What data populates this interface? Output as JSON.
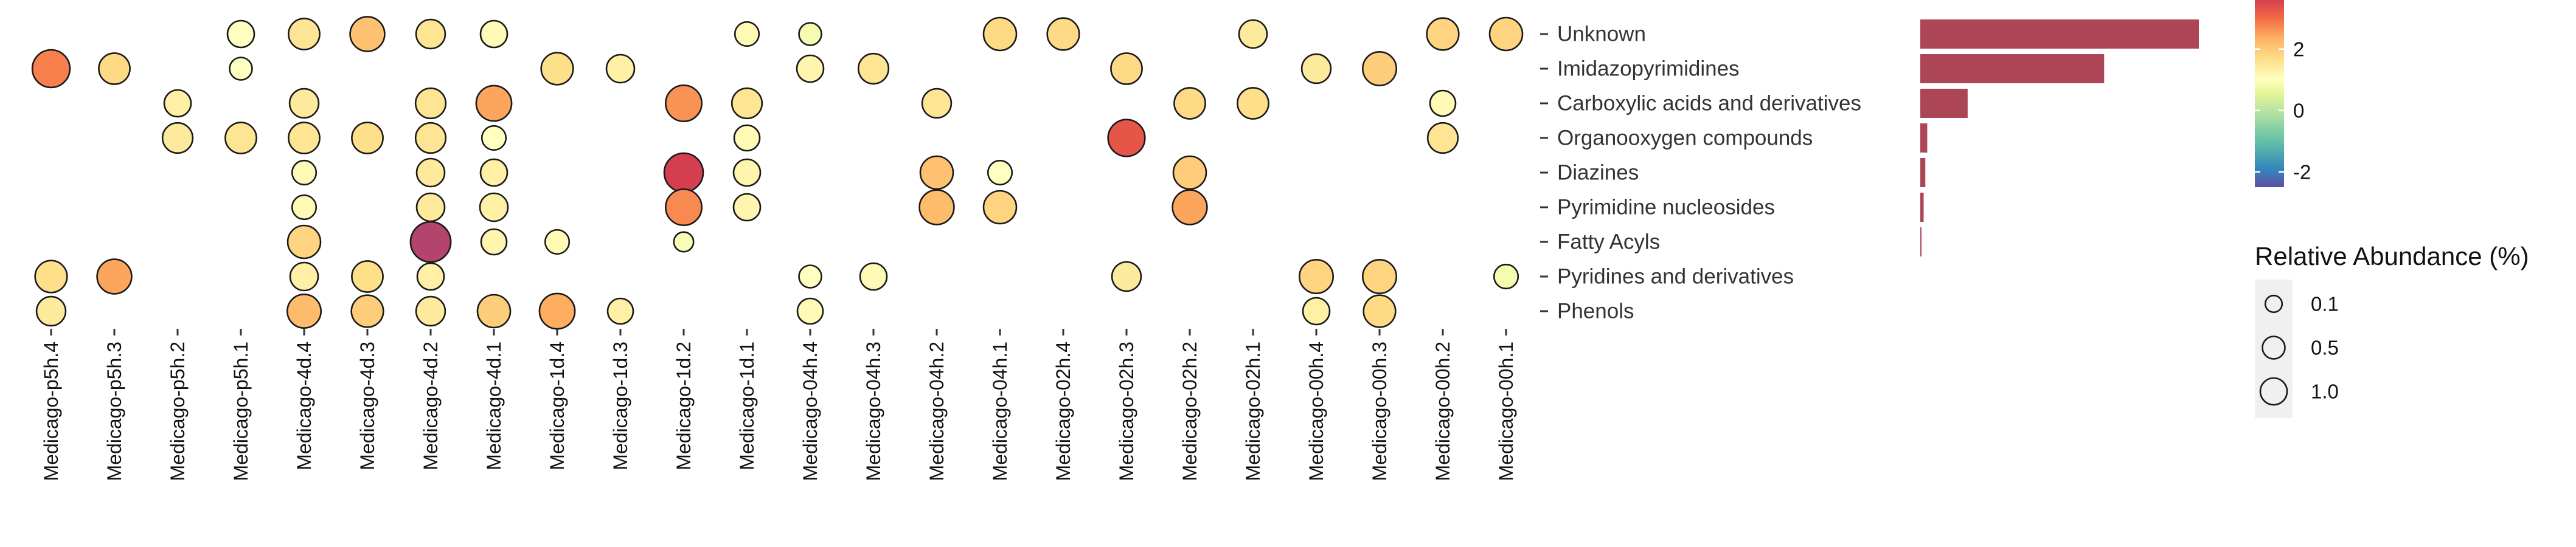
{
  "chart_data": {
    "type": "bubble-heatmap",
    "samples": [
      "Medicago-p5h.4",
      "Medicago-p5h.3",
      "Medicago-p5h.2",
      "Medicago-p5h.1",
      "Medicago-4d.4",
      "Medicago-4d.3",
      "Medicago-4d.2",
      "Medicago-4d.1",
      "Medicago-1d.4",
      "Medicago-1d.3",
      "Medicago-1d.2",
      "Medicago-1d.1",
      "Medicago-04h.4",
      "Medicago-04h.3",
      "Medicago-04h.2",
      "Medicago-04h.1",
      "Medicago-02h.4",
      "Medicago-02h.3",
      "Medicago-02h.2",
      "Medicago-02h.1",
      "Medicago-00h.4",
      "Medicago-00h.3",
      "Medicago-00h.2",
      "Medicago-00h.1"
    ],
    "classes": [
      "Unknown",
      "Imidazopyrimidines",
      "Carboxylic acids and derivatives",
      "Organooxygen compounds",
      "Diazines",
      "Pyrimidine nucleosides",
      "Fatty Acyls",
      "Pyridines and derivatives",
      "Phenols"
    ],
    "points": [
      {
        "sample": "Medicago-p5h.1",
        "class": "Unknown",
        "abundance": 0.3,
        "z": 0.5
      },
      {
        "sample": "Medicago-4d.4",
        "class": "Unknown",
        "abundance": 0.5,
        "z": 1.0
      },
      {
        "sample": "Medicago-4d.3",
        "class": "Unknown",
        "abundance": 0.7,
        "z": 1.6
      },
      {
        "sample": "Medicago-4d.2",
        "class": "Unknown",
        "abundance": 0.4,
        "z": 1.0
      },
      {
        "sample": "Medicago-4d.1",
        "class": "Unknown",
        "abundance": 0.3,
        "z": 0.6
      },
      {
        "sample": "Medicago-1d.1",
        "class": "Unknown",
        "abundance": 0.2,
        "z": 0.6
      },
      {
        "sample": "Medicago-04h.4",
        "class": "Unknown",
        "abundance": 0.15,
        "z": 0.3
      },
      {
        "sample": "Medicago-04h.1",
        "class": "Unknown",
        "abundance": 0.6,
        "z": 1.2
      },
      {
        "sample": "Medicago-02h.4",
        "class": "Unknown",
        "abundance": 0.55,
        "z": 1.2
      },
      {
        "sample": "Medicago-02h.1",
        "class": "Unknown",
        "abundance": 0.35,
        "z": 0.9
      },
      {
        "sample": "Medicago-00h.2",
        "class": "Unknown",
        "abundance": 0.55,
        "z": 1.3
      },
      {
        "sample": "Medicago-00h.1",
        "class": "Unknown",
        "abundance": 0.6,
        "z": 1.3
      },
      {
        "sample": "Medicago-p5h.4",
        "class": "Imidazopyrimidines",
        "abundance": 0.9,
        "z": 2.4
      },
      {
        "sample": "Medicago-p5h.3",
        "class": "Imidazopyrimidines",
        "abundance": 0.5,
        "z": 1.2
      },
      {
        "sample": "Medicago-p5h.1",
        "class": "Imidazopyrimidines",
        "abundance": 0.15,
        "z": 0.5
      },
      {
        "sample": "Medicago-1d.4",
        "class": "Imidazopyrimidines",
        "abundance": 0.55,
        "z": 1.1
      },
      {
        "sample": "Medicago-1d.3",
        "class": "Imidazopyrimidines",
        "abundance": 0.35,
        "z": 0.8
      },
      {
        "sample": "Medicago-04h.4",
        "class": "Imidazopyrimidines",
        "abundance": 0.3,
        "z": 0.7
      },
      {
        "sample": "Medicago-04h.3",
        "class": "Imidazopyrimidines",
        "abundance": 0.45,
        "z": 1.0
      },
      {
        "sample": "Medicago-02h.3",
        "class": "Imidazopyrimidines",
        "abundance": 0.5,
        "z": 1.2
      },
      {
        "sample": "Medicago-00h.4",
        "class": "Imidazopyrimidines",
        "abundance": 0.4,
        "z": 0.9
      },
      {
        "sample": "Medicago-00h.3",
        "class": "Imidazopyrimidines",
        "abundance": 0.65,
        "z": 1.4
      },
      {
        "sample": "Medicago-p5h.2",
        "class": "Carboxylic acids and derivatives",
        "abundance": 0.3,
        "z": 0.8
      },
      {
        "sample": "Medicago-4d.4",
        "class": "Carboxylic acids and derivatives",
        "abundance": 0.4,
        "z": 0.9
      },
      {
        "sample": "Medicago-4d.2",
        "class": "Carboxylic acids and derivatives",
        "abundance": 0.45,
        "z": 1.0
      },
      {
        "sample": "Medicago-4d.1",
        "class": "Carboxylic acids and derivatives",
        "abundance": 0.75,
        "z": 2.0
      },
      {
        "sample": "Medicago-1d.2",
        "class": "Carboxylic acids and derivatives",
        "abundance": 0.8,
        "z": 2.2
      },
      {
        "sample": "Medicago-1d.1",
        "class": "Carboxylic acids and derivatives",
        "abundance": 0.45,
        "z": 1.0
      },
      {
        "sample": "Medicago-04h.2",
        "class": "Carboxylic acids and derivatives",
        "abundance": 0.4,
        "z": 1.0
      },
      {
        "sample": "Medicago-02h.2",
        "class": "Carboxylic acids and derivatives",
        "abundance": 0.5,
        "z": 1.2
      },
      {
        "sample": "Medicago-02h.1",
        "class": "Carboxylic acids and derivatives",
        "abundance": 0.5,
        "z": 1.1
      },
      {
        "sample": "Medicago-00h.2",
        "class": "Carboxylic acids and derivatives",
        "abundance": 0.25,
        "z": 0.6
      },
      {
        "sample": "Medicago-p5h.2",
        "class": "Organooxygen compounds",
        "abundance": 0.45,
        "z": 0.9
      },
      {
        "sample": "Medicago-p5h.1",
        "class": "Organooxygen compounds",
        "abundance": 0.5,
        "z": 1.0
      },
      {
        "sample": "Medicago-4d.4",
        "class": "Organooxygen compounds",
        "abundance": 0.5,
        "z": 1.0
      },
      {
        "sample": "Medicago-4d.3",
        "class": "Organooxygen compounds",
        "abundance": 0.5,
        "z": 1.1
      },
      {
        "sample": "Medicago-4d.2",
        "class": "Organooxygen compounds",
        "abundance": 0.45,
        "z": 1.0
      },
      {
        "sample": "Medicago-4d.1",
        "class": "Organooxygen compounds",
        "abundance": 0.2,
        "z": 0.5
      },
      {
        "sample": "Medicago-1d.1",
        "class": "Organooxygen compounds",
        "abundance": 0.25,
        "z": 0.6
      },
      {
        "sample": "Medicago-02h.3",
        "class": "Organooxygen compounds",
        "abundance": 0.85,
        "z": 2.9
      },
      {
        "sample": "Medicago-00h.2",
        "class": "Organooxygen compounds",
        "abundance": 0.45,
        "z": 1.0
      },
      {
        "sample": "Medicago-4d.4",
        "class": "Diazines",
        "abundance": 0.2,
        "z": 0.6
      },
      {
        "sample": "Medicago-4d.2",
        "class": "Diazines",
        "abundance": 0.35,
        "z": 0.9
      },
      {
        "sample": "Medicago-4d.1",
        "class": "Diazines",
        "abundance": 0.3,
        "z": 0.8
      },
      {
        "sample": "Medicago-1d.2",
        "class": "Diazines",
        "abundance": 1.0,
        "z": 3.2
      },
      {
        "sample": "Medicago-1d.1",
        "class": "Diazines",
        "abundance": 0.3,
        "z": 0.7
      },
      {
        "sample": "Medicago-04h.2",
        "class": "Diazines",
        "abundance": 0.6,
        "z": 1.6
      },
      {
        "sample": "Medicago-04h.1",
        "class": "Diazines",
        "abundance": 0.2,
        "z": 0.5
      },
      {
        "sample": "Medicago-02h.2",
        "class": "Diazines",
        "abundance": 0.6,
        "z": 1.4
      },
      {
        "sample": "Medicago-4d.4",
        "class": "Pyrimidine nucleosides",
        "abundance": 0.2,
        "z": 0.6
      },
      {
        "sample": "Medicago-4d.2",
        "class": "Pyrimidine nucleosides",
        "abundance": 0.35,
        "z": 0.9
      },
      {
        "sample": "Medicago-4d.1",
        "class": "Pyrimidine nucleosides",
        "abundance": 0.35,
        "z": 0.8
      },
      {
        "sample": "Medicago-1d.2",
        "class": "Pyrimidine nucleosides",
        "abundance": 0.8,
        "z": 2.3
      },
      {
        "sample": "Medicago-1d.1",
        "class": "Pyrimidine nucleosides",
        "abundance": 0.3,
        "z": 0.7
      },
      {
        "sample": "Medicago-04h.2",
        "class": "Pyrimidine nucleosides",
        "abundance": 0.7,
        "z": 1.7
      },
      {
        "sample": "Medicago-04h.1",
        "class": "Pyrimidine nucleosides",
        "abundance": 0.6,
        "z": 1.3
      },
      {
        "sample": "Medicago-02h.2",
        "class": "Pyrimidine nucleosides",
        "abundance": 0.7,
        "z": 2.0
      },
      {
        "sample": "Medicago-4d.4",
        "class": "Fatty Acyls",
        "abundance": 0.6,
        "z": 1.3
      },
      {
        "sample": "Medicago-4d.2",
        "class": "Fatty Acyls",
        "abundance": 1.1,
        "z": 3.8
      },
      {
        "sample": "Medicago-4d.1",
        "class": "Fatty Acyls",
        "abundance": 0.25,
        "z": 0.7
      },
      {
        "sample": "Medicago-1d.4",
        "class": "Fatty Acyls",
        "abundance": 0.2,
        "z": 0.6
      },
      {
        "sample": "Medicago-1d.2",
        "class": "Fatty Acyls",
        "abundance": 0.08,
        "z": 0.4
      },
      {
        "sample": "Medicago-p5h.4",
        "class": "Pyridines and derivatives",
        "abundance": 0.55,
        "z": 1.1
      },
      {
        "sample": "Medicago-p5h.3",
        "class": "Pyridines and derivatives",
        "abundance": 0.7,
        "z": 2.0
      },
      {
        "sample": "Medicago-4d.4",
        "class": "Pyridines and derivatives",
        "abundance": 0.35,
        "z": 0.8
      },
      {
        "sample": "Medicago-4d.3",
        "class": "Pyridines and derivatives",
        "abundance": 0.5,
        "z": 1.1
      },
      {
        "sample": "Medicago-4d.2",
        "class": "Pyridines and derivatives",
        "abundance": 0.3,
        "z": 0.8
      },
      {
        "sample": "Medicago-04h.4",
        "class": "Pyridines and derivatives",
        "abundance": 0.15,
        "z": 0.5
      },
      {
        "sample": "Medicago-04h.3",
        "class": "Pyridines and derivatives",
        "abundance": 0.3,
        "z": 0.6
      },
      {
        "sample": "Medicago-02h.3",
        "class": "Pyridines and derivatives",
        "abundance": 0.4,
        "z": 0.9
      },
      {
        "sample": "Medicago-00h.4",
        "class": "Pyridines and derivatives",
        "abundance": 0.65,
        "z": 1.3
      },
      {
        "sample": "Medicago-00h.3",
        "class": "Pyridines and derivatives",
        "abundance": 0.65,
        "z": 1.3
      },
      {
        "sample": "Medicago-00h.1",
        "class": "Pyridines and derivatives",
        "abundance": 0.2,
        "z": 0.3
      },
      {
        "sample": "Medicago-p5h.4",
        "class": "Phenols",
        "abundance": 0.4,
        "z": 0.9
      },
      {
        "sample": "Medicago-4d.4",
        "class": "Phenols",
        "abundance": 0.65,
        "z": 1.7
      },
      {
        "sample": "Medicago-4d.3",
        "class": "Phenols",
        "abundance": 0.55,
        "z": 1.4
      },
      {
        "sample": "Medicago-4d.2",
        "class": "Phenols",
        "abundance": 0.4,
        "z": 0.9
      },
      {
        "sample": "Medicago-4d.1",
        "class": "Phenols",
        "abundance": 0.6,
        "z": 1.4
      },
      {
        "sample": "Medicago-1d.4",
        "class": "Phenols",
        "abundance": 0.75,
        "z": 1.9
      },
      {
        "sample": "Medicago-1d.3",
        "class": "Phenols",
        "abundance": 0.25,
        "z": 0.8
      },
      {
        "sample": "Medicago-04h.4",
        "class": "Phenols",
        "abundance": 0.25,
        "z": 0.6
      },
      {
        "sample": "Medicago-00h.4",
        "class": "Phenols",
        "abundance": 0.3,
        "z": 0.8
      },
      {
        "sample": "Medicago-00h.3",
        "class": "Phenols",
        "abundance": 0.55,
        "z": 1.2
      }
    ],
    "bars": {
      "type": "bar",
      "orientation": "horizontal",
      "color": "#AC4657",
      "values": [
        1.0,
        0.66,
        0.17,
        0.025,
        0.018,
        0.012,
        0.004,
        0,
        0
      ]
    },
    "color_legend": {
      "ticks": [
        2,
        0,
        -2
      ],
      "colors": [
        "#D53E4F",
        "#F46D43",
        "#FDAE61",
        "#FEE08B",
        "#FFFFBF",
        "#E6F598",
        "#ABDDA4",
        "#66C2A5",
        "#3288BD",
        "#5E4FA2"
      ],
      "strong_color": "#B3446C"
    },
    "size_legend": {
      "title": "Relative Abundance (%)",
      "values": [
        0.1,
        0.5,
        1.0
      ],
      "labels": [
        "0.1",
        "0.5",
        "1.0"
      ]
    }
  }
}
